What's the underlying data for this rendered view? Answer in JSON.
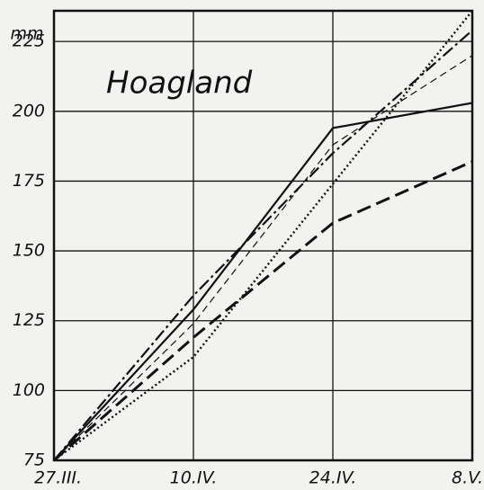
{
  "chart_data": {
    "type": "line",
    "title": "Hoagland",
    "y_label": "mm",
    "categories": [
      "27.III.",
      "10.IV.",
      "24.IV.",
      "8.V."
    ],
    "series": [
      {
        "color": "#111",
        "dash": "",
        "width": 2.2,
        "values": [
          75,
          129,
          194,
          203
        ]
      },
      {
        "color": "#111",
        "dash": "14 4 3 4",
        "width": 2.2,
        "values": [
          75,
          134,
          185,
          229
        ]
      },
      {
        "color": "#111",
        "dash": "8 5",
        "width": 1.2,
        "values": [
          75,
          124,
          188,
          220
        ]
      },
      {
        "color": "#111",
        "dash": "16 7",
        "width": 3,
        "values": [
          75,
          119,
          160,
          182
        ]
      },
      {
        "color": "#111",
        "dash": "2 3",
        "width": 2.4,
        "values": [
          75,
          112,
          174,
          236
        ]
      }
    ],
    "ylim": [
      75,
      236
    ],
    "yticks": [
      75,
      100,
      125,
      150,
      175,
      200,
      225
    ],
    "grid": true
  }
}
